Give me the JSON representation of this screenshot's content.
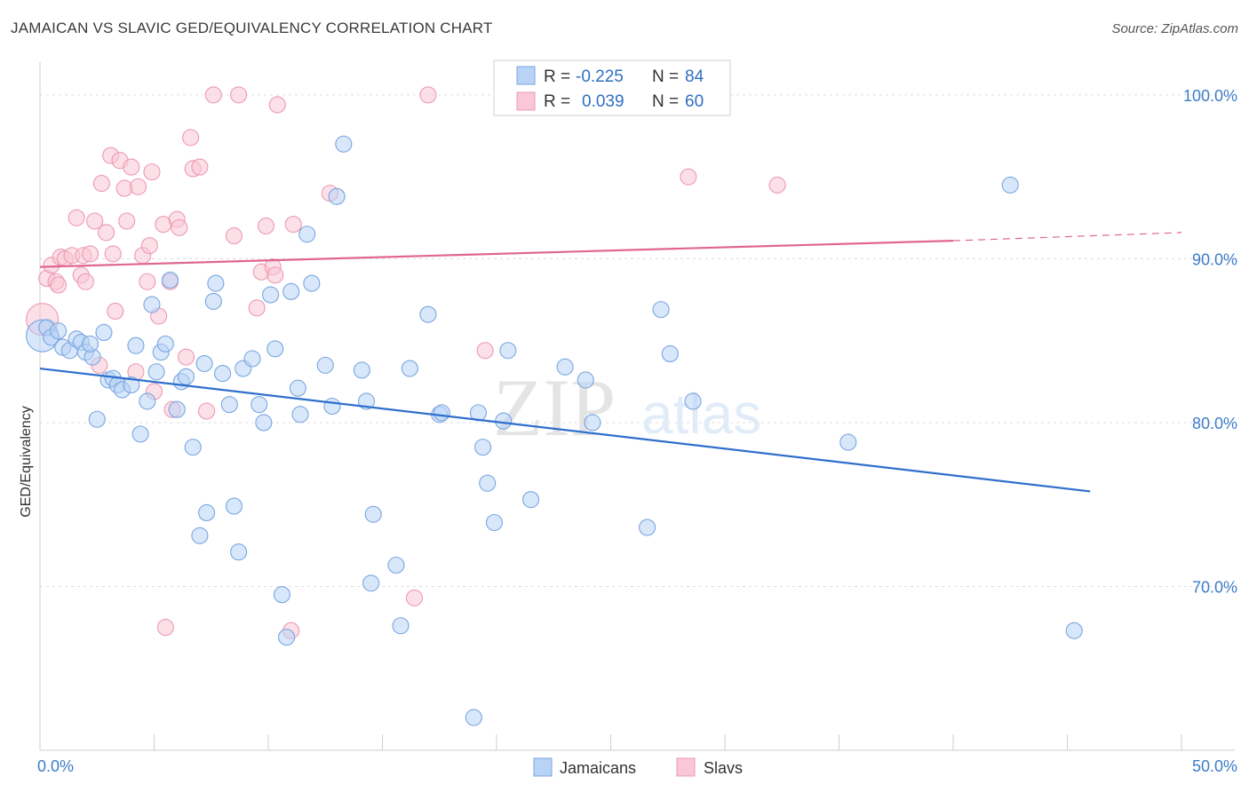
{
  "header": {
    "title": "JAMAICAN VS SLAVIC GED/EQUIVALENCY CORRELATION CHART",
    "source": "Source: ZipAtlas.com"
  },
  "watermark": {
    "zip": "ZIP",
    "atlas": "atlas"
  },
  "legend_top": {
    "rows": [
      {
        "r_label": "R =",
        "r_value": "-0.225",
        "n_label": "N =",
        "n_value": "84"
      },
      {
        "r_label": "R =",
        "r_value": "0.039",
        "n_label": "N =",
        "n_value": "60"
      }
    ]
  },
  "colors": {
    "jamaicans_fill": "#b8d3f5",
    "jamaicans_stroke": "#7aa6e0",
    "jamaicans_line": "#2f6fcc",
    "slavs_fill": "#f9c7d6",
    "slavs_stroke": "#ec99b4",
    "slavs_line": "#e0668f",
    "tick_text": "#3d7cc9",
    "grid": "#dcdcdc"
  },
  "chart_data": {
    "type": "scatter",
    "title": "JAMAICAN VS SLAVIC GED/EQUIVALENCY CORRELATION CHART",
    "xlabel": "",
    "ylabel": "GED/Equivalency",
    "xlim": [
      0,
      50
    ],
    "ylim": [
      60,
      102
    ],
    "x_tick_labels": [
      "0.0%",
      "50.0%"
    ],
    "y_ticks": [
      70,
      80,
      90,
      100
    ],
    "y_tick_labels": [
      "70.0%",
      "80.0%",
      "90.0%",
      "100.0%"
    ],
    "grid": true,
    "legend_placement": "top-center and bottom-center",
    "series": [
      {
        "name": "Jamaicans",
        "R": -0.225,
        "N": 84,
        "trend": {
          "x": [
            0,
            46
          ],
          "y": [
            83.3,
            75.8
          ]
        },
        "points": [
          [
            0.1,
            85.3
          ],
          [
            0.3,
            85.8
          ],
          [
            0.5,
            85.2
          ],
          [
            0.8,
            85.6
          ],
          [
            1.0,
            84.6
          ],
          [
            1.3,
            84.4
          ],
          [
            1.6,
            85.1
          ],
          [
            1.8,
            84.9
          ],
          [
            2.0,
            84.3
          ],
          [
            2.3,
            84.0
          ],
          [
            2.5,
            80.2
          ],
          [
            2.8,
            85.5
          ],
          [
            3.0,
            82.6
          ],
          [
            3.2,
            82.7
          ],
          [
            3.4,
            82.3
          ],
          [
            3.6,
            82.0
          ],
          [
            4.0,
            82.3
          ],
          [
            4.2,
            84.7
          ],
          [
            4.4,
            79.3
          ],
          [
            4.7,
            81.3
          ],
          [
            4.9,
            87.2
          ],
          [
            5.1,
            83.1
          ],
          [
            5.3,
            84.3
          ],
          [
            5.5,
            84.8
          ],
          [
            5.7,
            88.7
          ],
          [
            6.0,
            80.8
          ],
          [
            6.2,
            82.5
          ],
          [
            6.4,
            82.8
          ],
          [
            6.7,
            78.5
          ],
          [
            7.0,
            73.1
          ],
          [
            7.2,
            83.6
          ],
          [
            7.3,
            74.5
          ],
          [
            7.6,
            87.4
          ],
          [
            7.7,
            88.5
          ],
          [
            8.0,
            83.0
          ],
          [
            8.3,
            81.1
          ],
          [
            8.5,
            74.9
          ],
          [
            8.7,
            72.1
          ],
          [
            8.9,
            83.3
          ],
          [
            9.3,
            83.9
          ],
          [
            9.6,
            81.1
          ],
          [
            9.8,
            80.0
          ],
          [
            10.1,
            87.8
          ],
          [
            10.3,
            84.5
          ],
          [
            10.6,
            69.5
          ],
          [
            10.8,
            66.9
          ],
          [
            11.0,
            88.0
          ],
          [
            11.3,
            82.1
          ],
          [
            11.4,
            80.5
          ],
          [
            11.7,
            91.5
          ],
          [
            11.9,
            88.5
          ],
          [
            12.5,
            83.5
          ],
          [
            12.8,
            81.0
          ],
          [
            13.0,
            93.8
          ],
          [
            13.3,
            97.0
          ],
          [
            14.1,
            83.2
          ],
          [
            14.3,
            81.3
          ],
          [
            14.6,
            74.4
          ],
          [
            14.5,
            70.2
          ],
          [
            15.6,
            71.3
          ],
          [
            15.8,
            67.6
          ],
          [
            16.2,
            83.3
          ],
          [
            17.0,
            86.6
          ],
          [
            17.5,
            80.5
          ],
          [
            17.6,
            80.6
          ],
          [
            19.0,
            62.0
          ],
          [
            19.2,
            80.6
          ],
          [
            19.4,
            78.5
          ],
          [
            19.6,
            76.3
          ],
          [
            19.9,
            73.9
          ],
          [
            20.3,
            80.1
          ],
          [
            20.5,
            84.4
          ],
          [
            21.5,
            75.3
          ],
          [
            23.0,
            83.4
          ],
          [
            23.9,
            82.6
          ],
          [
            24.2,
            80.0
          ],
          [
            26.6,
            73.6
          ],
          [
            27.2,
            86.9
          ],
          [
            27.6,
            84.2
          ],
          [
            28.6,
            81.3
          ],
          [
            35.4,
            78.8
          ],
          [
            42.5,
            94.5
          ],
          [
            45.3,
            67.3
          ],
          [
            2.2,
            84.8
          ]
        ]
      },
      {
        "name": "Slavs",
        "R": 0.039,
        "N": 60,
        "trend": {
          "x": [
            0,
            40
          ],
          "y": [
            89.5,
            91.1
          ]
        },
        "trend_dashed": {
          "x": [
            40,
            50
          ],
          "y": [
            91.1,
            91.6
          ]
        },
        "points": [
          [
            0.1,
            86.3
          ],
          [
            0.3,
            88.8
          ],
          [
            0.5,
            89.6
          ],
          [
            0.7,
            88.6
          ],
          [
            0.8,
            88.4
          ],
          [
            0.9,
            90.1
          ],
          [
            1.1,
            90.0
          ],
          [
            1.4,
            90.2
          ],
          [
            1.6,
            92.5
          ],
          [
            1.8,
            89.0
          ],
          [
            1.9,
            90.2
          ],
          [
            2.0,
            88.6
          ],
          [
            2.2,
            90.3
          ],
          [
            2.4,
            92.3
          ],
          [
            2.6,
            83.5
          ],
          [
            2.7,
            94.6
          ],
          [
            2.9,
            91.6
          ],
          [
            3.1,
            96.3
          ],
          [
            3.2,
            90.3
          ],
          [
            3.3,
            86.8
          ],
          [
            3.5,
            96.0
          ],
          [
            3.7,
            94.3
          ],
          [
            3.8,
            92.3
          ],
          [
            4.0,
            95.6
          ],
          [
            4.2,
            83.1
          ],
          [
            4.3,
            94.4
          ],
          [
            4.5,
            90.2
          ],
          [
            4.7,
            88.6
          ],
          [
            4.8,
            90.8
          ],
          [
            5.0,
            81.9
          ],
          [
            5.2,
            86.5
          ],
          [
            5.4,
            92.1
          ],
          [
            5.5,
            67.5
          ],
          [
            5.7,
            88.6
          ],
          [
            5.8,
            80.8
          ],
          [
            6.0,
            92.4
          ],
          [
            6.1,
            91.9
          ],
          [
            6.4,
            84.0
          ],
          [
            6.6,
            97.4
          ],
          [
            6.7,
            95.5
          ],
          [
            7.0,
            95.6
          ],
          [
            7.3,
            80.7
          ],
          [
            7.6,
            100.0
          ],
          [
            8.5,
            91.4
          ],
          [
            8.7,
            100.0
          ],
          [
            9.5,
            87.0
          ],
          [
            9.7,
            89.2
          ],
          [
            9.9,
            92.0
          ],
          [
            10.2,
            89.5
          ],
          [
            10.3,
            89.0
          ],
          [
            10.4,
            99.4
          ],
          [
            11.0,
            67.3
          ],
          [
            11.1,
            92.1
          ],
          [
            12.7,
            94.0
          ],
          [
            16.4,
            69.3
          ],
          [
            17.0,
            100.0
          ],
          [
            19.5,
            84.4
          ],
          [
            28.4,
            95.0
          ],
          [
            32.3,
            94.5
          ],
          [
            4.9,
            95.3
          ]
        ]
      }
    ]
  },
  "legend_bottom": {
    "items": [
      "Jamaicans",
      "Slavs"
    ]
  }
}
